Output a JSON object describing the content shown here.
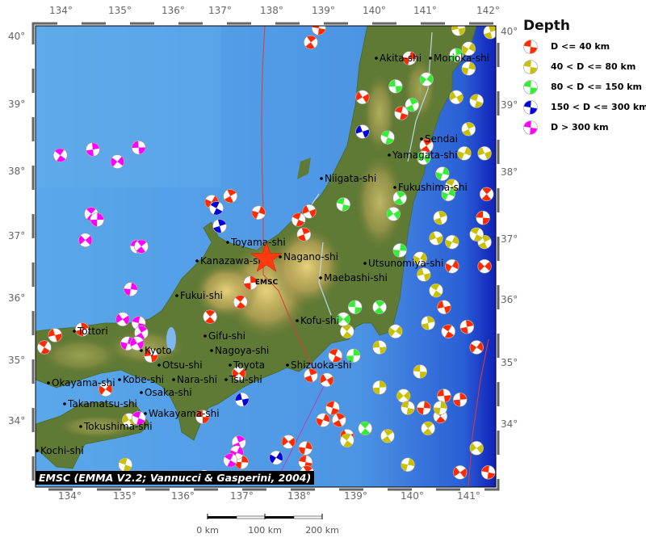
{
  "legend": {
    "title": "Depth",
    "items": [
      {
        "label": "D <= 40 km",
        "color": "#ff2a00"
      },
      {
        "label": "40 < D <= 80 km",
        "color": "#c8c000"
      },
      {
        "label": "80 < D <= 150 km",
        "color": "#33ee33"
      },
      {
        "label": "150 < D <= 300 km",
        "color": "#0000dd"
      },
      {
        "label": "D > 300 km",
        "color": "#ff00ff"
      }
    ]
  },
  "axes": {
    "top_lon": [
      "134°",
      "135°",
      "136°",
      "137°",
      "138°",
      "139°",
      "140°",
      "141°",
      "142°"
    ],
    "bottom_lon": [
      "134°",
      "135°",
      "136°",
      "137°",
      "138°",
      "139°",
      "140°",
      "141°"
    ],
    "left_lat": [
      "40°",
      "39°",
      "38°",
      "37°",
      "36°",
      "35°",
      "34°"
    ],
    "right_lat": [
      "40°",
      "39°",
      "38°",
      "37°",
      "36°",
      "35°",
      "34°"
    ]
  },
  "cities": [
    "Akita-shi",
    "Morioka-shi",
    "Yamagata-shi",
    "Sendai",
    "Niigata-shi",
    "Fukushima-shi",
    "Toyama-shi",
    "Nagano-shi",
    "Kanazawa-shi",
    "Utsunomiya-shi",
    "Maebashi-shi",
    "Fukui-shi",
    "Kofu-shi",
    "Tottori",
    "Gifu-shi",
    "Nagoya-shi",
    "Toyota",
    "Kyoto",
    "Otsu-shi",
    "Shizuoka-shi",
    "Okayama-shi",
    "Kobe-shi",
    "Osaka-shi",
    "Nara-shi",
    "Tsu-shi",
    "Takamatsu-shi",
    "Wakayama-shi",
    "Tokushima-shi",
    "Kochi-shi"
  ],
  "epicenter_label": "EMSC",
  "credit": "EMSC (EMMA V2.2; Vannucci & Gasperini, 2004)",
  "scale": {
    "labels": [
      "0 km",
      "100 km",
      "200 km"
    ]
  },
  "events": [
    [
      138.8,
      40.19,
      1
    ],
    [
      138.65,
      39.97,
      1
    ],
    [
      140.5,
      39.72,
      1
    ],
    [
      139.62,
      39.11,
      1
    ],
    [
      140.35,
      38.86,
      1
    ],
    [
      137.14,
      37.56,
      1
    ],
    [
      137.67,
      37.3,
      1
    ],
    [
      138.62,
      37.32,
      1
    ],
    [
      138.42,
      37.19,
      1
    ],
    [
      138.52,
      36.96,
      1
    ],
    [
      136.79,
      37.47,
      1
    ],
    [
      133.85,
      35.38,
      1
    ],
    [
      133.65,
      35.19,
      1
    ],
    [
      134.36,
      35.47,
      1
    ],
    [
      134.8,
      34.53,
      1
    ],
    [
      135.65,
      35.06,
      1
    ],
    [
      137.33,
      35.9,
      1
    ],
    [
      137.52,
      36.2,
      1
    ],
    [
      137.3,
      34.78,
      1
    ],
    [
      136.62,
      34.1,
      1
    ],
    [
      136.76,
      35.67,
      1
    ],
    [
      137.35,
      33.39,
      1
    ],
    [
      138.23,
      33.71,
      1
    ],
    [
      138.55,
      33.39,
      1
    ],
    [
      138.58,
      33.23,
      1
    ],
    [
      138.55,
      33.61,
      1
    ],
    [
      138.95,
      34.68,
      1
    ],
    [
      139.06,
      34.24,
      1
    ],
    [
      139.18,
      34.05,
      1
    ],
    [
      138.88,
      34.05,
      1
    ],
    [
      139.33,
      33.8,
      1
    ],
    [
      139.11,
      35.06,
      1
    ],
    [
      138.65,
      34.75,
      1
    ],
    [
      141.3,
      36.46,
      1
    ],
    [
      141.15,
      35.82,
      1
    ],
    [
      141.23,
      35.44,
      1
    ],
    [
      141.58,
      35.51,
      1
    ],
    [
      141.76,
      35.19,
      1
    ],
    [
      141.15,
      34.43,
      1
    ],
    [
      141.08,
      34.11,
      1
    ],
    [
      141.45,
      34.37,
      1
    ],
    [
      141.91,
      36.46,
      1
    ],
    [
      141.88,
      37.22,
      1
    ],
    [
      141.95,
      37.59,
      1
    ],
    [
      140.77,
      34.24,
      1
    ],
    [
      141.45,
      33.23,
      1
    ],
    [
      141.98,
      33.23,
      1
    ],
    [
      140.82,
      38.35,
      1
    ],
    [
      141.61,
      39.56,
      2
    ],
    [
      141.38,
      39.11,
      2
    ],
    [
      141.76,
      39.05,
      2
    ],
    [
      141.61,
      38.61,
      2
    ],
    [
      141.53,
      38.23,
      2
    ],
    [
      141.91,
      38.23,
      2
    ],
    [
      141.3,
      37.72,
      2
    ],
    [
      141.08,
      37.22,
      2
    ],
    [
      140.7,
      36.58,
      2
    ],
    [
      140.77,
      36.33,
      2
    ],
    [
      141.0,
      36.08,
      2
    ],
    [
      140.85,
      35.57,
      2
    ],
    [
      140.24,
      35.44,
      2
    ],
    [
      139.94,
      35.19,
      2
    ],
    [
      139.33,
      35.44,
      2
    ],
    [
      139.94,
      34.56,
      2
    ],
    [
      140.39,
      34.43,
      2
    ],
    [
      140.7,
      34.81,
      2
    ],
    [
      140.85,
      33.92,
      2
    ],
    [
      141.08,
      34.24,
      2
    ],
    [
      141.76,
      33.61,
      2
    ],
    [
      140.47,
      34.24,
      2
    ],
    [
      140.09,
      33.8,
      2
    ],
    [
      140.47,
      33.35,
      2
    ],
    [
      135.24,
      34.05,
      2
    ],
    [
      135.17,
      33.35,
      2
    ],
    [
      141.91,
      36.84,
      2
    ],
    [
      141.3,
      36.84,
      2
    ],
    [
      141.0,
      36.9,
      2
    ],
    [
      141.76,
      36.96,
      2
    ],
    [
      142.02,
      40.13,
      2
    ],
    [
      141.61,
      39.87,
      2
    ],
    [
      141.42,
      40.18,
      2
    ],
    [
      139.33,
      33.73,
      2
    ],
    [
      141.38,
      39.77,
      3
    ],
    [
      140.82,
      39.39,
      3
    ],
    [
      140.24,
      39.28,
      3
    ],
    [
      139.67,
      33.92,
      3
    ],
    [
      139.45,
      35.06,
      3
    ],
    [
      139.26,
      35.63,
      3
    ],
    [
      139.48,
      35.82,
      3
    ],
    [
      139.94,
      35.82,
      3
    ],
    [
      140.32,
      36.71,
      3
    ],
    [
      140.2,
      37.28,
      3
    ],
    [
      139.26,
      37.43,
      3
    ],
    [
      140.32,
      37.53,
      3
    ],
    [
      141.12,
      37.91,
      3
    ],
    [
      140.77,
      38.16,
      3
    ],
    [
      140.09,
      38.48,
      3
    ],
    [
      140.55,
      38.99,
      3
    ],
    [
      141.23,
      37.59,
      3
    ],
    [
      139.62,
      38.57,
      4
    ],
    [
      136.88,
      37.37,
      4
    ],
    [
      136.94,
      37.09,
      4
    ],
    [
      138.0,
      33.46,
      4
    ],
    [
      137.36,
      34.37,
      4
    ],
    [
      133.95,
      38.2,
      5
    ],
    [
      134.56,
      38.29,
      5
    ],
    [
      135.02,
      38.1,
      5
    ],
    [
      135.42,
      38.32,
      5
    ],
    [
      134.53,
      37.28,
      5
    ],
    [
      134.64,
      37.19,
      5
    ],
    [
      134.42,
      36.87,
      5
    ],
    [
      135.39,
      36.77,
      5
    ],
    [
      135.47,
      36.77,
      5
    ],
    [
      135.27,
      36.1,
      5
    ],
    [
      135.12,
      35.63,
      5
    ],
    [
      135.42,
      35.57,
      5
    ],
    [
      135.47,
      35.42,
      5
    ],
    [
      135.21,
      35.25,
      5
    ],
    [
      135.39,
      35.25,
      5
    ],
    [
      135.42,
      34.08,
      5
    ],
    [
      137.3,
      33.7,
      5
    ],
    [
      137.26,
      33.54,
      5
    ],
    [
      136.65,
      33.16,
      5
    ],
    [
      137.14,
      33.42,
      5
    ]
  ]
}
